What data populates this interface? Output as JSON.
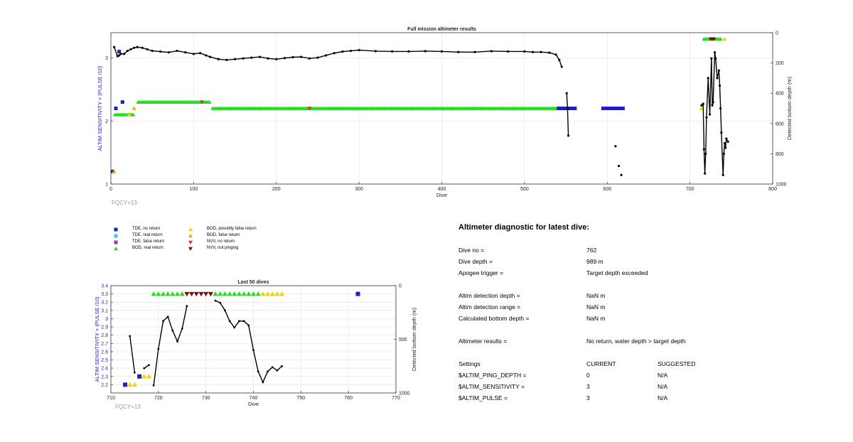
{
  "top_chart": {
    "title": "Full mission altimeter results",
    "fqcy": "FQCY=13"
  },
  "bottom_chart": {
    "title": "Last 50 dives",
    "fqcy": "FQCY=13"
  },
  "legend": [
    {
      "label": "TDE, no return",
      "color": "#1f1fbf",
      "marker": "square"
    },
    {
      "label": "TDE, real return",
      "color": "#3cc8f0",
      "marker": "square"
    },
    {
      "label": "TDE, false return",
      "color": "#8a3fd1",
      "marker": "square"
    },
    {
      "label": "BOD, real return",
      "color": "#22dd22",
      "marker": "triangle-up"
    },
    {
      "label": "BOD, possibly false return",
      "color": "#f2d200",
      "marker": "triangle-up"
    },
    {
      "label": "BOD, false return",
      "color": "#f4a11c",
      "marker": "triangle-up"
    },
    {
      "label": "NVV, no return",
      "color": "#e23020",
      "marker": "triangle-down"
    },
    {
      "label": "NVV, not pinging",
      "color": "#7a1010",
      "marker": "triangle-down"
    }
  ],
  "diagnostic": {
    "title": "Altimeter diagnostic for latest dive:",
    "rows": [
      {
        "label": "Dive no =",
        "value": "762"
      },
      {
        "label": "Dive depth =",
        "value": "989 m"
      },
      {
        "label": "Apogee trigger =",
        "value": "Target depth exceeded"
      },
      {
        "label": "Altim detection depth =",
        "value": "NaN m"
      },
      {
        "label": "Altim detection range =",
        "value": "NaN m"
      },
      {
        "label": "Calculated bottom depth =",
        "value": "NaN m"
      },
      {
        "label": "Altimeter results =",
        "value": "No return, water depth > target depth"
      }
    ],
    "settings": {
      "header": [
        "Settings",
        "CURRENT",
        "SUGGESTED"
      ],
      "rows": [
        [
          "$ALTIM_PING_DEPTH =",
          "0",
          "N/A"
        ],
        [
          "$ALTIM_SENSITIVITY =",
          "3",
          "N/A"
        ],
        [
          "$ALTIM_PULSE =",
          "3",
          "N/A"
        ]
      ]
    }
  },
  "chart_data": [
    {
      "type": "scatter",
      "title": "Full mission altimeter results",
      "xlabel": "Dive",
      "ylabel": "ALTIM SENSITIVITY + (PULSE /10)",
      "y2label": "Detected bottom depth (m)",
      "xlim": [
        0,
        800
      ],
      "ylim": [
        1,
        3.4
      ],
      "y2lim": [
        0,
        1000
      ],
      "y2_reversed": true,
      "xticks": [
        "0",
        "100",
        "200",
        "300",
        "400",
        "500",
        "600",
        "700",
        "800"
      ],
      "yticks": [
        "1",
        "2",
        "3"
      ],
      "y2ticks": [
        "0",
        "200",
        "400",
        "600",
        "800",
        "1000"
      ],
      "grid": true,
      "markers": [
        {
          "kind": "BOD, real return",
          "x": [
            33,
            120
          ],
          "y": 2.3,
          "range": true
        },
        {
          "kind": "BOD, real return",
          "x": [
            123,
            540
          ],
          "y": 2.2,
          "range": true
        },
        {
          "kind": "BOD, real return",
          "x": [
            5,
            27
          ],
          "y": 2.1,
          "range": true
        },
        {
          "kind": "BOD, real return",
          "x": [
            717,
            738
          ],
          "y": 3.3,
          "range": true
        },
        {
          "kind": "TDE, no return",
          "x": [
            541,
            562
          ],
          "y": 2.2,
          "range": true
        },
        {
          "kind": "TDE, no return",
          "x": [
            595,
            620
          ],
          "y": 2.2,
          "range": true
        },
        {
          "kind": "TDE, no return",
          "x": 2,
          "y": 1.2
        },
        {
          "kind": "TDE, no return",
          "x": 6,
          "y": 2.2
        },
        {
          "kind": "TDE, no return",
          "x": 14,
          "y": 2.3
        },
        {
          "kind": "TDE, no return",
          "x": 10,
          "y": 3.1
        },
        {
          "kind": "BOD, false return",
          "x": 4,
          "y": 1.2
        },
        {
          "kind": "BOD, false return",
          "x": 28,
          "y": 2.2
        },
        {
          "kind": "BOD, possibly false return",
          "x": 22,
          "y": 2.1
        },
        {
          "kind": "BOD, possibly false return",
          "x": 742,
          "y": 3.3
        },
        {
          "kind": "BOD, possibly false return",
          "x": 714,
          "y": 2.2
        },
        {
          "kind": "NVV, no return",
          "x": 110,
          "y": 2.3
        },
        {
          "kind": "NVV, no return",
          "x": 240,
          "y": 2.2
        },
        {
          "kind": "NVV, not pinging",
          "x": [
            725,
            730
          ],
          "y": 3.3,
          "range": true
        }
      ],
      "bottom_depth_series": [
        {
          "x": [
            4,
            8,
            10,
            12,
            16,
            20,
            24,
            28,
            32,
            38,
            44,
            50,
            60,
            70,
            80,
            90,
            100,
            108,
            115,
            120,
            130,
            140,
            150,
            160,
            170,
            180,
            190,
            200,
            210,
            220,
            230,
            240,
            250,
            260,
            270,
            280,
            290,
            300,
            320,
            340,
            360,
            380,
            400,
            420,
            440,
            460,
            480,
            500,
            510,
            520,
            530,
            538,
            542,
            545
          ],
          "y": [
            95,
            155,
            150,
            140,
            140,
            120,
            110,
            100,
            95,
            100,
            110,
            120,
            125,
            130,
            120,
            130,
            140,
            135,
            150,
            160,
            175,
            180,
            175,
            170,
            165,
            160,
            170,
            175,
            168,
            162,
            160,
            170,
            165,
            150,
            135,
            125,
            120,
            115,
            122,
            124,
            124,
            122,
            124,
            128,
            128,
            122,
            124,
            124,
            128,
            128,
            132,
            145,
            180,
            225
          ]
        },
        {
          "x": [
            551,
            552,
            553
          ],
          "y": [
            400,
            500,
            680
          ]
        },
        {
          "x": [
            610
          ],
          "y": [
            750
          ]
        },
        {
          "x": [
            614
          ],
          "y": [
            880
          ]
        },
        {
          "x": [
            617
          ],
          "y": [
            940
          ]
        },
        {
          "x": [
            714,
            716,
            717,
            718,
            719,
            720,
            722,
            724,
            726,
            727,
            728,
            730,
            731,
            733,
            735,
            736,
            737,
            738,
            740,
            741,
            742,
            743,
            744,
            746
          ],
          "y": [
            480,
            470,
            770,
            930,
            800,
            560,
            300,
            540,
            170,
            480,
            460,
            130,
            170,
            300,
            250,
            350,
            500,
            660,
            940,
            800,
            730,
            760,
            700,
            720
          ]
        }
      ]
    },
    {
      "type": "scatter",
      "title": "Last 50 dives",
      "xlabel": "Dive",
      "ylabel": "ALTIM SENSITIVITY + (PULSE /10)",
      "y2label": "Detected bottom depth (m)",
      "xlim": [
        710,
        770
      ],
      "ylim": [
        2.1,
        3.4
      ],
      "y2lim": [
        0,
        1000
      ],
      "y2_reversed": true,
      "xticks": [
        "710",
        "720",
        "730",
        "740",
        "750",
        "760",
        "770"
      ],
      "yticks": [
        "2.2",
        "2.3",
        "2.4",
        "2.5",
        "2.6",
        "2.7",
        "2.8",
        "2.9",
        "3",
        "3.1",
        "3.2",
        "3.3",
        "3.4"
      ],
      "y2ticks": [
        "0",
        "500",
        "1000"
      ],
      "grid": true,
      "markers": [
        {
          "kind": "TDE, no return",
          "x": 713,
          "y": 2.2
        },
        {
          "kind": "TDE, no return",
          "x": 716,
          "y": 2.3
        },
        {
          "kind": "TDE, no return",
          "x": 762,
          "y": 3.3
        },
        {
          "kind": "BOD, possibly false return",
          "x": 714,
          "y": 2.2
        },
        {
          "kind": "BOD, possibly false return",
          "x": 715,
          "y": 2.2
        },
        {
          "kind": "BOD, possibly false return",
          "x": 717,
          "y": 2.3
        },
        {
          "kind": "BOD, possibly false return",
          "x": 718,
          "y": 2.3
        },
        {
          "kind": "BOD, real return",
          "x": 719,
          "y": 3.3
        },
        {
          "kind": "BOD, real return",
          "x": 720,
          "y": 3.3
        },
        {
          "kind": "BOD, real return",
          "x": 721,
          "y": 3.3
        },
        {
          "kind": "BOD, real return",
          "x": 722,
          "y": 3.3
        },
        {
          "kind": "BOD, real return",
          "x": 723,
          "y": 3.3
        },
        {
          "kind": "BOD, real return",
          "x": 724,
          "y": 3.3
        },
        {
          "kind": "BOD, real return",
          "x": 725,
          "y": 3.3
        },
        {
          "kind": "NVV, not pinging",
          "x": 726,
          "y": 3.3
        },
        {
          "kind": "NVV, not pinging",
          "x": 727,
          "y": 3.3
        },
        {
          "kind": "NVV, not pinging",
          "x": 728,
          "y": 3.3
        },
        {
          "kind": "NVV, not pinging",
          "x": 729,
          "y": 3.3
        },
        {
          "kind": "NVV, not pinging",
          "x": 730,
          "y": 3.3
        },
        {
          "kind": "NVV, not pinging",
          "x": 731,
          "y": 3.3
        },
        {
          "kind": "BOD, real return",
          "x": 732,
          "y": 3.3
        },
        {
          "kind": "BOD, real return",
          "x": 733,
          "y": 3.3
        },
        {
          "kind": "BOD, real return",
          "x": 734,
          "y": 3.3
        },
        {
          "kind": "BOD, real return",
          "x": 735,
          "y": 3.3
        },
        {
          "kind": "BOD, real return",
          "x": 736,
          "y": 3.3
        },
        {
          "kind": "BOD, real return",
          "x": 737,
          "y": 3.3
        },
        {
          "kind": "BOD, real return",
          "x": 738,
          "y": 3.3
        },
        {
          "kind": "BOD, real return",
          "x": 739,
          "y": 3.3
        },
        {
          "kind": "BOD, real return",
          "x": 740,
          "y": 3.3
        },
        {
          "kind": "BOD, real return",
          "x": 741,
          "y": 3.3
        },
        {
          "kind": "BOD, possibly false return",
          "x": 742,
          "y": 3.3
        },
        {
          "kind": "BOD, possibly false return",
          "x": 743,
          "y": 3.3
        },
        {
          "kind": "BOD, possibly false return",
          "x": 744,
          "y": 3.3
        },
        {
          "kind": "BOD, possibly false return",
          "x": 745,
          "y": 3.3
        },
        {
          "kind": "BOD, possibly false return",
          "x": 746,
          "y": 3.3
        }
      ],
      "bottom_depth_series": [
        {
          "x": [
            714,
            715
          ],
          "y": [
            470,
            810
          ]
        },
        {
          "x": [
            717,
            718
          ],
          "y": [
            770,
            740
          ]
        },
        {
          "x": [
            719,
            720,
            721,
            722,
            723,
            724,
            725,
            726
          ],
          "y": [
            930,
            590,
            330,
            290,
            420,
            520,
            400,
            190
          ]
        },
        {
          "x": [
            732,
            733,
            734,
            735,
            736,
            737,
            738,
            739,
            740,
            741,
            742,
            743,
            744,
            745,
            746
          ],
          "y": [
            140,
            160,
            230,
            330,
            390,
            330,
            330,
            370,
            600,
            800,
            900,
            800,
            760,
            790,
            750
          ]
        }
      ]
    }
  ]
}
